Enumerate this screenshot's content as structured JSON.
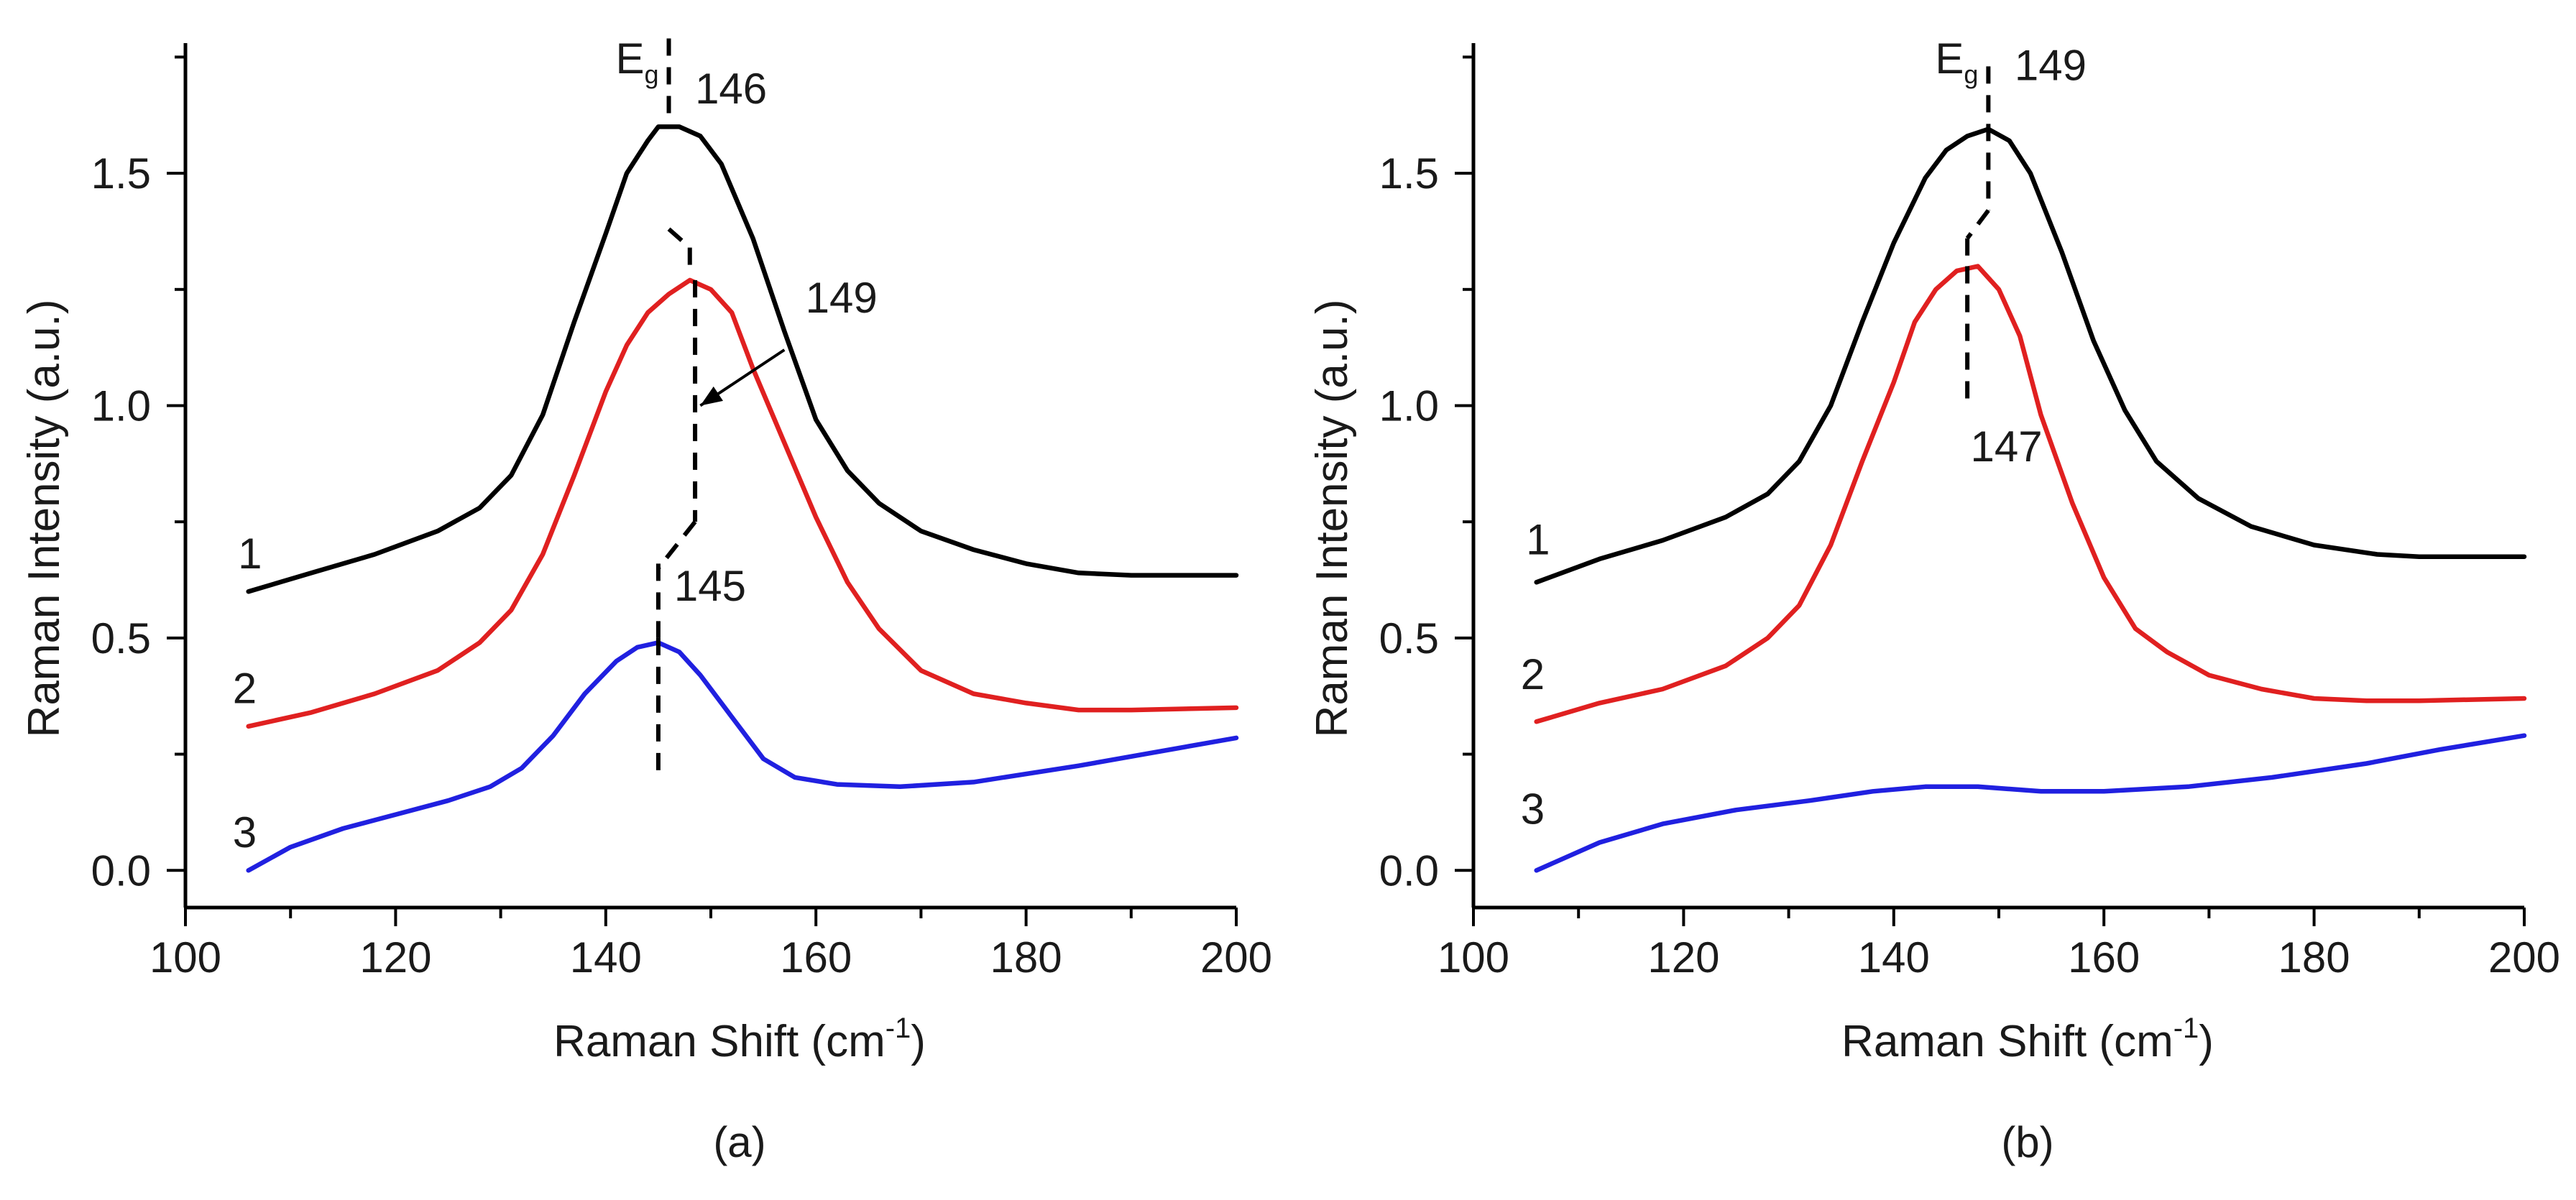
{
  "chart_data": [
    {
      "type": "line",
      "panel_label": "(a)",
      "xlabel": "Raman Shift (cm",
      "xlabel_sup": "-1",
      "xlabel_close": ")",
      "ylabel": "Raman Intensity (a.u.)",
      "xlim": [
        100,
        200
      ],
      "ylim": [
        -0.08,
        1.78
      ],
      "xticks": [
        "100",
        "120",
        "140",
        "160",
        "180",
        "200"
      ],
      "yticks": [
        "0.0",
        "0.5",
        "1.0",
        "1.5"
      ],
      "series": [
        {
          "name": "1",
          "color": "#000000",
          "points": [
            [
              106,
              0.6
            ],
            [
              112,
              0.64
            ],
            [
              118,
              0.68
            ],
            [
              124,
              0.73
            ],
            [
              128,
              0.78
            ],
            [
              131,
              0.85
            ],
            [
              134,
              0.98
            ],
            [
              137,
              1.18
            ],
            [
              140,
              1.37
            ],
            [
              142,
              1.5
            ],
            [
              144,
              1.57
            ],
            [
              145,
              1.6
            ],
            [
              147,
              1.6
            ],
            [
              149,
              1.58
            ],
            [
              151,
              1.52
            ],
            [
              154,
              1.36
            ],
            [
              157,
              1.16
            ],
            [
              160,
              0.97
            ],
            [
              163,
              0.86
            ],
            [
              166,
              0.79
            ],
            [
              170,
              0.73
            ],
            [
              175,
              0.69
            ],
            [
              180,
              0.66
            ],
            [
              185,
              0.64
            ],
            [
              190,
              0.635
            ],
            [
              200,
              0.635
            ]
          ]
        },
        {
          "name": "2",
          "color": "#e02020",
          "points": [
            [
              106,
              0.31
            ],
            [
              112,
              0.34
            ],
            [
              118,
              0.38
            ],
            [
              124,
              0.43
            ],
            [
              128,
              0.49
            ],
            [
              131,
              0.56
            ],
            [
              134,
              0.68
            ],
            [
              137,
              0.85
            ],
            [
              140,
              1.03
            ],
            [
              142,
              1.13
            ],
            [
              144,
              1.2
            ],
            [
              146,
              1.24
            ],
            [
              148,
              1.27
            ],
            [
              150,
              1.25
            ],
            [
              152,
              1.2
            ],
            [
              154,
              1.08
            ],
            [
              157,
              0.92
            ],
            [
              160,
              0.76
            ],
            [
              163,
              0.62
            ],
            [
              166,
              0.52
            ],
            [
              170,
              0.43
            ],
            [
              175,
              0.38
            ],
            [
              180,
              0.36
            ],
            [
              185,
              0.345
            ],
            [
              190,
              0.345
            ],
            [
              200,
              0.35
            ]
          ]
        },
        {
          "name": "3",
          "color": "#2020e0",
          "points": [
            [
              106,
              0.0
            ],
            [
              110,
              0.05
            ],
            [
              115,
              0.09
            ],
            [
              120,
              0.12
            ],
            [
              125,
              0.15
            ],
            [
              129,
              0.18
            ],
            [
              132,
              0.22
            ],
            [
              135,
              0.29
            ],
            [
              138,
              0.38
            ],
            [
              141,
              0.45
            ],
            [
              143,
              0.48
            ],
            [
              145,
              0.49
            ],
            [
              147,
              0.47
            ],
            [
              149,
              0.42
            ],
            [
              152,
              0.33
            ],
            [
              155,
              0.24
            ],
            [
              158,
              0.2
            ],
            [
              162,
              0.185
            ],
            [
              168,
              0.18
            ],
            [
              175,
              0.19
            ],
            [
              185,
              0.225
            ],
            [
              200,
              0.285
            ]
          ]
        }
      ],
      "eg_label": "E",
      "eg_sub": "g",
      "annotations": [
        {
          "text": "146",
          "x": 148.5,
          "y": 1.65
        },
        {
          "text": "149",
          "x": 159,
          "y": 1.2
        },
        {
          "text": "145",
          "x": 146.5,
          "y": 0.58
        }
      ],
      "guide_segments": [
        [
          [
            146,
            1.79
          ],
          [
            146,
            1.6
          ]
        ],
        [
          [
            146,
            1.38
          ],
          [
            148,
            1.34
          ]
        ],
        [
          [
            148,
            1.34
          ],
          [
            148,
            1.28
          ]
        ],
        [
          [
            148.5,
            1.27
          ],
          [
            148.5,
            0.75
          ]
        ],
        [
          [
            148.5,
            0.75
          ],
          [
            145,
            0.65
          ]
        ],
        [
          [
            145,
            0.66
          ],
          [
            145,
            0.5
          ]
        ],
        [
          [
            145,
            0.5
          ],
          [
            145,
            0.2
          ]
        ]
      ],
      "arrow": {
        "from": [
          157,
          1.12
        ],
        "to": [
          149,
          1.0
        ]
      },
      "curve_labels": [
        {
          "text": "1",
          "x": 105,
          "y": 0.65
        },
        {
          "text": "2",
          "x": 104.5,
          "y": 0.36
        },
        {
          "text": "3",
          "x": 104.5,
          "y": 0.05
        }
      ]
    },
    {
      "type": "line",
      "panel_label": "(b)",
      "xlabel": "Raman Shift (cm",
      "xlabel_sup": "-1",
      "xlabel_close": ")",
      "ylabel": "Raman Intensity (a.u.)",
      "xlim": [
        100,
        200
      ],
      "ylim": [
        -0.08,
        1.78
      ],
      "xticks": [
        "100",
        "120",
        "140",
        "160",
        "180",
        "200"
      ],
      "yticks": [
        "0.0",
        "0.5",
        "1.0",
        "1.5"
      ],
      "series": [
        {
          "name": "1",
          "color": "#000000",
          "points": [
            [
              106,
              0.62
            ],
            [
              112,
              0.67
            ],
            [
              118,
              0.71
            ],
            [
              124,
              0.76
            ],
            [
              128,
              0.81
            ],
            [
              131,
              0.88
            ],
            [
              134,
              1.0
            ],
            [
              137,
              1.18
            ],
            [
              140,
              1.35
            ],
            [
              143,
              1.49
            ],
            [
              145,
              1.55
            ],
            [
              147,
              1.58
            ],
            [
              149,
              1.595
            ],
            [
              151,
              1.57
            ],
            [
              153,
              1.5
            ],
            [
              156,
              1.33
            ],
            [
              159,
              1.14
            ],
            [
              162,
              0.99
            ],
            [
              165,
              0.88
            ],
            [
              169,
              0.8
            ],
            [
              174,
              0.74
            ],
            [
              180,
              0.7
            ],
            [
              186,
              0.68
            ],
            [
              190,
              0.675
            ],
            [
              200,
              0.675
            ]
          ]
        },
        {
          "name": "2",
          "color": "#e02020",
          "points": [
            [
              106,
              0.32
            ],
            [
              112,
              0.36
            ],
            [
              118,
              0.39
            ],
            [
              124,
              0.44
            ],
            [
              128,
              0.5
            ],
            [
              131,
              0.57
            ],
            [
              134,
              0.7
            ],
            [
              137,
              0.88
            ],
            [
              140,
              1.05
            ],
            [
              142,
              1.18
            ],
            [
              144,
              1.25
            ],
            [
              146,
              1.29
            ],
            [
              148,
              1.3
            ],
            [
              150,
              1.25
            ],
            [
              152,
              1.15
            ],
            [
              154,
              0.98
            ],
            [
              157,
              0.79
            ],
            [
              160,
              0.63
            ],
            [
              163,
              0.52
            ],
            [
              166,
              0.47
            ],
            [
              170,
              0.42
            ],
            [
              175,
              0.39
            ],
            [
              180,
              0.37
            ],
            [
              185,
              0.365
            ],
            [
              190,
              0.365
            ],
            [
              200,
              0.37
            ]
          ]
        },
        {
          "name": "3",
          "color": "#2020e0",
          "points": [
            [
              106,
              0.0
            ],
            [
              112,
              0.06
            ],
            [
              118,
              0.1
            ],
            [
              125,
              0.13
            ],
            [
              132,
              0.15
            ],
            [
              138,
              0.17
            ],
            [
              143,
              0.18
            ],
            [
              148,
              0.18
            ],
            [
              154,
              0.17
            ],
            [
              160,
              0.17
            ],
            [
              168,
              0.18
            ],
            [
              176,
              0.2
            ],
            [
              185,
              0.23
            ],
            [
              192,
              0.26
            ],
            [
              200,
              0.29
            ]
          ]
        }
      ],
      "eg_label": "E",
      "eg_sub": "g",
      "annotations": [
        {
          "text": "149",
          "x": 151.5,
          "y": 1.7
        },
        {
          "text": "147",
          "x": 147.3,
          "y": 0.88
        }
      ],
      "guide_segments": [
        [
          [
            149,
            1.73
          ],
          [
            149,
            1.42
          ]
        ],
        [
          [
            149,
            1.42
          ],
          [
            147,
            1.36
          ]
        ],
        [
          [
            147,
            1.36
          ],
          [
            147,
            1.3
          ]
        ],
        [
          [
            147,
            1.3
          ],
          [
            147,
            1.01
          ]
        ]
      ],
      "curve_labels": [
        {
          "text": "1",
          "x": 105,
          "y": 0.68
        },
        {
          "text": "2",
          "x": 104.5,
          "y": 0.39
        },
        {
          "text": "3",
          "x": 104.5,
          "y": 0.1
        }
      ]
    }
  ]
}
